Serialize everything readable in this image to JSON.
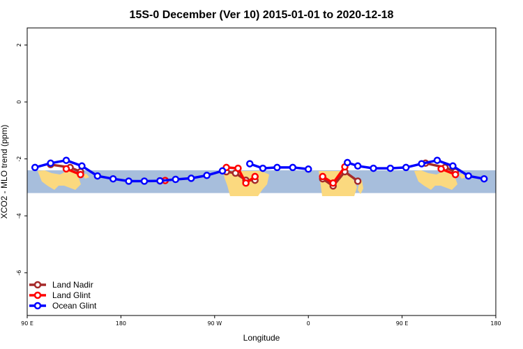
{
  "chart_data": {
    "type": "line",
    "title": "15S-0 December (Ver 10)   2015-01-01 to 2020-12-18",
    "xlabel": "Longitude",
    "ylabel": "XCO2 - MLO trend (ppm)",
    "xlim": [
      45,
      405
    ],
    "ylim": [
      -7.5,
      2.6
    ],
    "x_ticks": [
      {
        "value": 45,
        "label": "90 E"
      },
      {
        "value": 117,
        "label": "180"
      },
      {
        "value": 189,
        "label": "90 W"
      },
      {
        "value": 261,
        "label": "0"
      },
      {
        "value": 333,
        "label": "90 E"
      },
      {
        "value": 405,
        "label": "180"
      }
    ],
    "y_ticks": [
      {
        "value": 2,
        "label": "2"
      },
      {
        "value": 0,
        "label": "0"
      },
      {
        "value": -2,
        "label": "-2"
      },
      {
        "value": -4,
        "label": "-4"
      },
      {
        "value": -6,
        "label": "-6"
      }
    ],
    "latitude_band_y": [
      -3.2,
      -2.4
    ],
    "band_color": "#a7bedc",
    "land_color": "#fbd97f",
    "legend_position": "bottom-left",
    "series": [
      {
        "name": "Land Nadir",
        "color": "#a52a2a",
        "segments": [
          [
            [
              63,
              -2.2
            ],
            [
              78,
              -2.3
            ],
            [
              86,
              -2.45
            ]
          ],
          [
            [
              198,
              -2.45
            ],
            [
              205,
              -2.5
            ],
            [
              213,
              -2.75
            ],
            [
              220,
              -2.75
            ]
          ],
          [
            [
              272,
              -2.7
            ],
            [
              280,
              -2.95
            ],
            [
              289,
              -2.45
            ],
            [
              299,
              -2.78
            ]
          ],
          [
            [
              351,
              -2.15
            ],
            [
              366,
              -2.3
            ],
            [
              374,
              -2.45
            ]
          ]
        ]
      },
      {
        "name": "Land Glint",
        "color": "#ff0000",
        "segments": [
          [
            [
              75,
              -2.35
            ],
            [
              86,
              -2.55
            ]
          ],
          [
            [
              147,
              -2.77
            ],
            [
              151,
              -2.76
            ]
          ],
          [
            [
              198,
              -2.3
            ],
            [
              207,
              -2.33
            ],
            [
              213,
              -2.85
            ],
            [
              220,
              -2.62
            ]
          ],
          [
            [
              272,
              -2.62
            ],
            [
              280,
              -2.85
            ],
            [
              289,
              -2.28
            ]
          ],
          [
            [
              363,
              -2.35
            ],
            [
              374,
              -2.55
            ]
          ]
        ]
      },
      {
        "name": "Ocean Glint",
        "color": "#0000ff",
        "segments": [
          [
            [
              51,
              -2.3
            ],
            [
              63,
              -2.15
            ],
            [
              75,
              -2.05
            ],
            [
              87,
              -2.25
            ],
            [
              99,
              -2.6
            ],
            [
              111,
              -2.7
            ],
            [
              123,
              -2.78
            ],
            [
              135,
              -2.78
            ],
            [
              147,
              -2.77
            ],
            [
              159,
              -2.72
            ],
            [
              171,
              -2.68
            ],
            [
              183,
              -2.58
            ],
            [
              195,
              -2.42
            ]
          ],
          [
            [
              216,
              -2.17
            ],
            [
              226,
              -2.33
            ],
            [
              237,
              -2.3
            ],
            [
              249,
              -2.3
            ],
            [
              261,
              -2.36
            ]
          ],
          [
            [
              291,
              -2.13
            ],
            [
              299,
              -2.25
            ],
            [
              311,
              -2.33
            ],
            [
              324,
              -2.33
            ],
            [
              336,
              -2.3
            ],
            [
              348,
              -2.17
            ],
            [
              360,
              -2.05
            ],
            [
              372,
              -2.25
            ],
            [
              384,
              -2.6
            ],
            [
              396,
              -2.7
            ]
          ]
        ]
      }
    ]
  }
}
